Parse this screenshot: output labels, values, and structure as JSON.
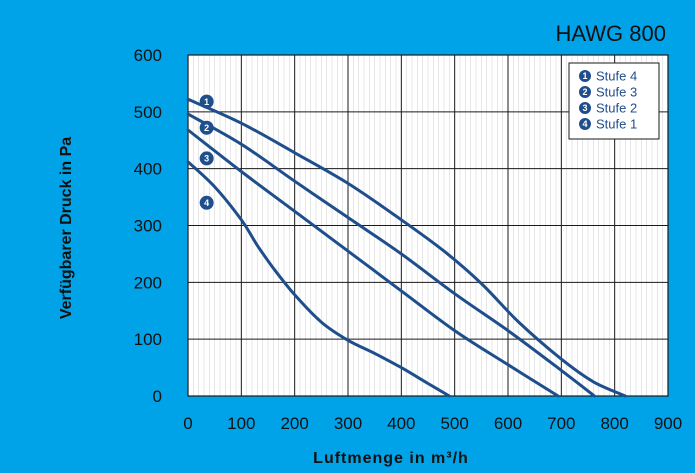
{
  "colors": {
    "background": "#00a3e8",
    "plot_area": "#ffffff",
    "series_line": "#1f4e8c",
    "grid": "#1a1a1a",
    "minor_grid": "#cfcfcf",
    "text": "#111111"
  },
  "chart_data": {
    "type": "line",
    "title": "HAWG 800",
    "xlabel": "Luftmenge in m³/h",
    "ylabel": "Verfügbarer Druck in Pa",
    "xlim": [
      0,
      900
    ],
    "ylim": [
      0,
      600
    ],
    "xticks": [
      0,
      100,
      200,
      300,
      400,
      500,
      600,
      700,
      800,
      900
    ],
    "yticks": [
      0,
      100,
      200,
      300,
      400,
      500,
      600
    ],
    "grid": true,
    "legend_position": "top-right",
    "series": [
      {
        "name": "Stufe 4",
        "marker": "1",
        "marker_at": {
          "x": 35,
          "y": 518
        },
        "points": [
          [
            0,
            522
          ],
          [
            100,
            480
          ],
          [
            200,
            428
          ],
          [
            300,
            374
          ],
          [
            400,
            310
          ],
          [
            480,
            255
          ],
          [
            550,
            198
          ],
          [
            620,
            130
          ],
          [
            700,
            65
          ],
          [
            760,
            25
          ],
          [
            820,
            0
          ]
        ]
      },
      {
        "name": "Stufe 3",
        "marker": "2",
        "marker_at": {
          "x": 35,
          "y": 472
        },
        "points": [
          [
            0,
            496
          ],
          [
            100,
            443
          ],
          [
            200,
            378
          ],
          [
            300,
            314
          ],
          [
            400,
            250
          ],
          [
            500,
            180
          ],
          [
            600,
            115
          ],
          [
            700,
            45
          ],
          [
            762,
            0
          ]
        ]
      },
      {
        "name": "Stufe 2",
        "marker": "3",
        "marker_at": {
          "x": 35,
          "y": 418
        },
        "points": [
          [
            0,
            468
          ],
          [
            100,
            395
          ],
          [
            200,
            325
          ],
          [
            300,
            255
          ],
          [
            400,
            185
          ],
          [
            500,
            115
          ],
          [
            600,
            55
          ],
          [
            694,
            0
          ]
        ]
      },
      {
        "name": "Stufe 1",
        "marker": "4",
        "marker_at": {
          "x": 35,
          "y": 340
        },
        "points": [
          [
            0,
            412
          ],
          [
            50,
            368
          ],
          [
            100,
            310
          ],
          [
            130,
            265
          ],
          [
            160,
            225
          ],
          [
            200,
            178
          ],
          [
            250,
            130
          ],
          [
            300,
            98
          ],
          [
            350,
            75
          ],
          [
            400,
            50
          ],
          [
            450,
            22
          ],
          [
            490,
            0
          ]
        ]
      }
    ]
  }
}
